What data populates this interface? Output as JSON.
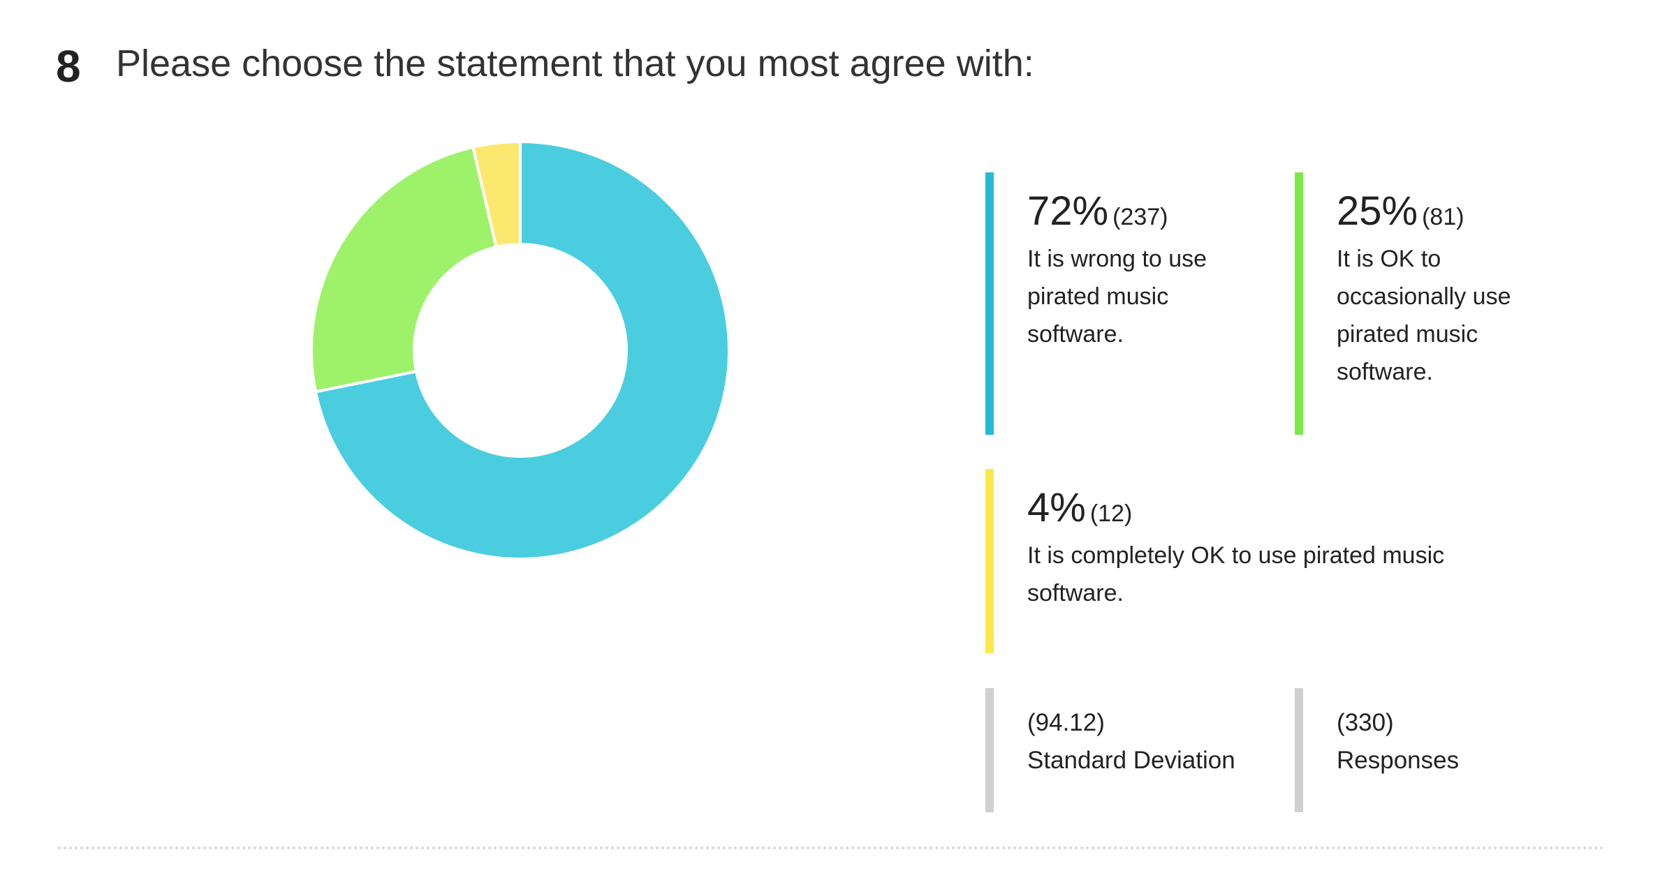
{
  "question_number": 8,
  "title": "Please choose the statement that you most agree with:",
  "chart_data": {
    "type": "pie",
    "categories": [
      "It is wrong to use pirated music software.",
      "It is OK to occasionally use pirated music software.",
      "It is completely OK to use pirated music software."
    ],
    "values": [
      72,
      25,
      4
    ],
    "value_labels": [
      "72%",
      "25%",
      "4%"
    ],
    "counts": [
      237,
      81,
      12
    ],
    "count_labels": [
      "(237)",
      "(81)",
      "(12)"
    ],
    "colors": [
      "#4bcde0",
      "#9df26a",
      "#fde86f"
    ],
    "legend_colors": [
      "#22bcd6",
      "#7de849",
      "#fde84c"
    ]
  },
  "stats": [
    {
      "value": {
        "value": 94.12,
        "label": "(94.12)"
      },
      "label": "Standard Deviation"
    },
    {
      "value": {
        "value": 330,
        "label": "(330)"
      },
      "label": "Responses"
    }
  ]
}
